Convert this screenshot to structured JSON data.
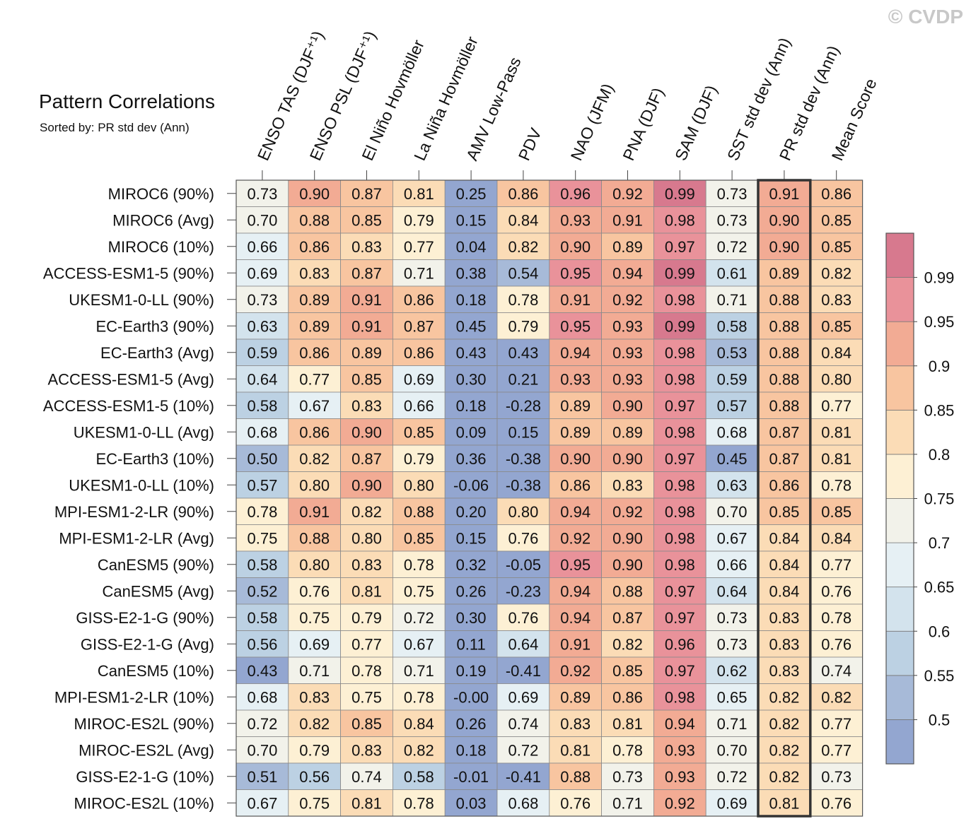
{
  "copyright": "© CVDP",
  "chart_data": {
    "type": "heatmap",
    "title": "Pattern Correlations",
    "subtitle": "Sorted by: PR std dev (Ann)",
    "columns": [
      "ENSO TAS (DJF⁺¹)",
      "ENSO PSL (DJF⁺¹)",
      "El Niño Hovmöller",
      "La Niña Hovmöller",
      "AMV Low-Pass",
      "PDV",
      "NAO (JFM)",
      "PNA (DJF)",
      "SAM (DJF)",
      "SST std dev (Ann)",
      "PR std dev (Ann)",
      "Mean Score"
    ],
    "highlighted_column": "PR std dev (Ann)",
    "rows": [
      {
        "label": "MIROC6 (90%)",
        "values": [
          "0.73",
          "0.90",
          "0.87",
          "0.81",
          "0.25",
          "0.86",
          "0.96",
          "0.92",
          "0.99",
          "0.73",
          "0.91",
          "0.86"
        ]
      },
      {
        "label": "MIROC6 (Avg)",
        "values": [
          "0.70",
          "0.88",
          "0.85",
          "0.79",
          "0.15",
          "0.84",
          "0.93",
          "0.91",
          "0.98",
          "0.73",
          "0.90",
          "0.85"
        ]
      },
      {
        "label": "MIROC6 (10%)",
        "values": [
          "0.66",
          "0.86",
          "0.83",
          "0.77",
          "0.04",
          "0.82",
          "0.90",
          "0.89",
          "0.97",
          "0.72",
          "0.90",
          "0.85"
        ]
      },
      {
        "label": "ACCESS-ESM1-5 (90%)",
        "values": [
          "0.69",
          "0.83",
          "0.87",
          "0.71",
          "0.38",
          "0.54",
          "0.95",
          "0.94",
          "0.99",
          "0.61",
          "0.89",
          "0.82"
        ]
      },
      {
        "label": "UKESM1-0-LL (90%)",
        "values": [
          "0.73",
          "0.89",
          "0.91",
          "0.86",
          "0.18",
          "0.78",
          "0.91",
          "0.92",
          "0.98",
          "0.71",
          "0.88",
          "0.83"
        ]
      },
      {
        "label": "EC-Earth3 (90%)",
        "values": [
          "0.63",
          "0.89",
          "0.91",
          "0.87",
          "0.45",
          "0.79",
          "0.95",
          "0.93",
          "0.99",
          "0.58",
          "0.88",
          "0.85"
        ]
      },
      {
        "label": "EC-Earth3 (Avg)",
        "values": [
          "0.59",
          "0.86",
          "0.89",
          "0.86",
          "0.43",
          "0.43",
          "0.94",
          "0.93",
          "0.98",
          "0.53",
          "0.88",
          "0.84"
        ]
      },
      {
        "label": "ACCESS-ESM1-5 (Avg)",
        "values": [
          "0.64",
          "0.77",
          "0.85",
          "0.69",
          "0.30",
          "0.21",
          "0.93",
          "0.93",
          "0.98",
          "0.59",
          "0.88",
          "0.80"
        ]
      },
      {
        "label": "ACCESS-ESM1-5 (10%)",
        "values": [
          "0.58",
          "0.67",
          "0.83",
          "0.66",
          "0.18",
          "-0.28",
          "0.89",
          "0.90",
          "0.97",
          "0.57",
          "0.88",
          "0.77"
        ]
      },
      {
        "label": "UKESM1-0-LL (Avg)",
        "values": [
          "0.68",
          "0.86",
          "0.90",
          "0.85",
          "0.09",
          "0.15",
          "0.89",
          "0.89",
          "0.98",
          "0.68",
          "0.87",
          "0.81"
        ]
      },
      {
        "label": "EC-Earth3 (10%)",
        "values": [
          "0.50",
          "0.82",
          "0.87",
          "0.79",
          "0.36",
          "-0.38",
          "0.90",
          "0.90",
          "0.97",
          "0.45",
          "0.87",
          "0.81"
        ]
      },
      {
        "label": "UKESM1-0-LL (10%)",
        "values": [
          "0.57",
          "0.80",
          "0.90",
          "0.80",
          "-0.06",
          "-0.38",
          "0.86",
          "0.83",
          "0.98",
          "0.63",
          "0.86",
          "0.78"
        ]
      },
      {
        "label": "MPI-ESM1-2-LR (90%)",
        "values": [
          "0.78",
          "0.91",
          "0.82",
          "0.88",
          "0.20",
          "0.80",
          "0.94",
          "0.92",
          "0.98",
          "0.70",
          "0.85",
          "0.85"
        ]
      },
      {
        "label": "MPI-ESM1-2-LR (Avg)",
        "values": [
          "0.75",
          "0.88",
          "0.80",
          "0.85",
          "0.15",
          "0.76",
          "0.92",
          "0.90",
          "0.98",
          "0.67",
          "0.84",
          "0.84"
        ]
      },
      {
        "label": "CanESM5 (90%)",
        "values": [
          "0.58",
          "0.80",
          "0.83",
          "0.78",
          "0.32",
          "-0.05",
          "0.95",
          "0.90",
          "0.98",
          "0.66",
          "0.84",
          "0.77"
        ]
      },
      {
        "label": "CanESM5 (Avg)",
        "values": [
          "0.52",
          "0.76",
          "0.81",
          "0.75",
          "0.26",
          "-0.23",
          "0.94",
          "0.88",
          "0.97",
          "0.64",
          "0.84",
          "0.76"
        ]
      },
      {
        "label": "GISS-E2-1-G (90%)",
        "values": [
          "0.58",
          "0.75",
          "0.79",
          "0.72",
          "0.30",
          "0.76",
          "0.94",
          "0.87",
          "0.97",
          "0.73",
          "0.83",
          "0.78"
        ]
      },
      {
        "label": "GISS-E2-1-G (Avg)",
        "values": [
          "0.56",
          "0.69",
          "0.77",
          "0.67",
          "0.11",
          "0.64",
          "0.91",
          "0.82",
          "0.96",
          "0.73",
          "0.83",
          "0.76"
        ]
      },
      {
        "label": "CanESM5 (10%)",
        "values": [
          "0.43",
          "0.71",
          "0.78",
          "0.71",
          "0.19",
          "-0.41",
          "0.92",
          "0.85",
          "0.97",
          "0.62",
          "0.83",
          "0.74"
        ]
      },
      {
        "label": "MPI-ESM1-2-LR (10%)",
        "values": [
          "0.68",
          "0.83",
          "0.75",
          "0.78",
          "-0.00",
          "0.69",
          "0.89",
          "0.86",
          "0.98",
          "0.65",
          "0.82",
          "0.82"
        ]
      },
      {
        "label": "MIROC-ES2L (90%)",
        "values": [
          "0.72",
          "0.82",
          "0.85",
          "0.84",
          "0.26",
          "0.74",
          "0.83",
          "0.81",
          "0.94",
          "0.71",
          "0.82",
          "0.77"
        ]
      },
      {
        "label": "MIROC-ES2L (Avg)",
        "values": [
          "0.70",
          "0.79",
          "0.83",
          "0.82",
          "0.18",
          "0.72",
          "0.81",
          "0.78",
          "0.93",
          "0.70",
          "0.82",
          "0.77"
        ]
      },
      {
        "label": "GISS-E2-1-G (10%)",
        "values": [
          "0.51",
          "0.56",
          "0.74",
          "0.58",
          "-0.01",
          "-0.41",
          "0.88",
          "0.73",
          "0.93",
          "0.72",
          "0.82",
          "0.73"
        ]
      },
      {
        "label": "MIROC-ES2L (10%)",
        "values": [
          "0.67",
          "0.75",
          "0.81",
          "0.78",
          "0.03",
          "0.68",
          "0.76",
          "0.71",
          "0.92",
          "0.69",
          "0.81",
          "0.76"
        ]
      }
    ],
    "colorbar": {
      "thresholds": [
        0.5,
        0.55,
        0.6,
        0.65,
        0.7,
        0.75,
        0.8,
        0.85,
        0.9,
        0.95,
        0.99
      ],
      "tick_labels": [
        "0.5",
        "0.55",
        "0.6",
        "0.65",
        "0.7",
        "0.75",
        "0.8",
        "0.85",
        "0.9",
        "0.95",
        "0.99"
      ],
      "colors": [
        "#93a6d0",
        "#a7bad8",
        "#bcd1e3",
        "#d3e3ed",
        "#e6f0f4",
        "#f2f2ea",
        "#fdf0d4",
        "#fbdcb6",
        "#f8c5a0",
        "#f2ab94",
        "#e9929a",
        "#d7798e"
      ]
    }
  }
}
